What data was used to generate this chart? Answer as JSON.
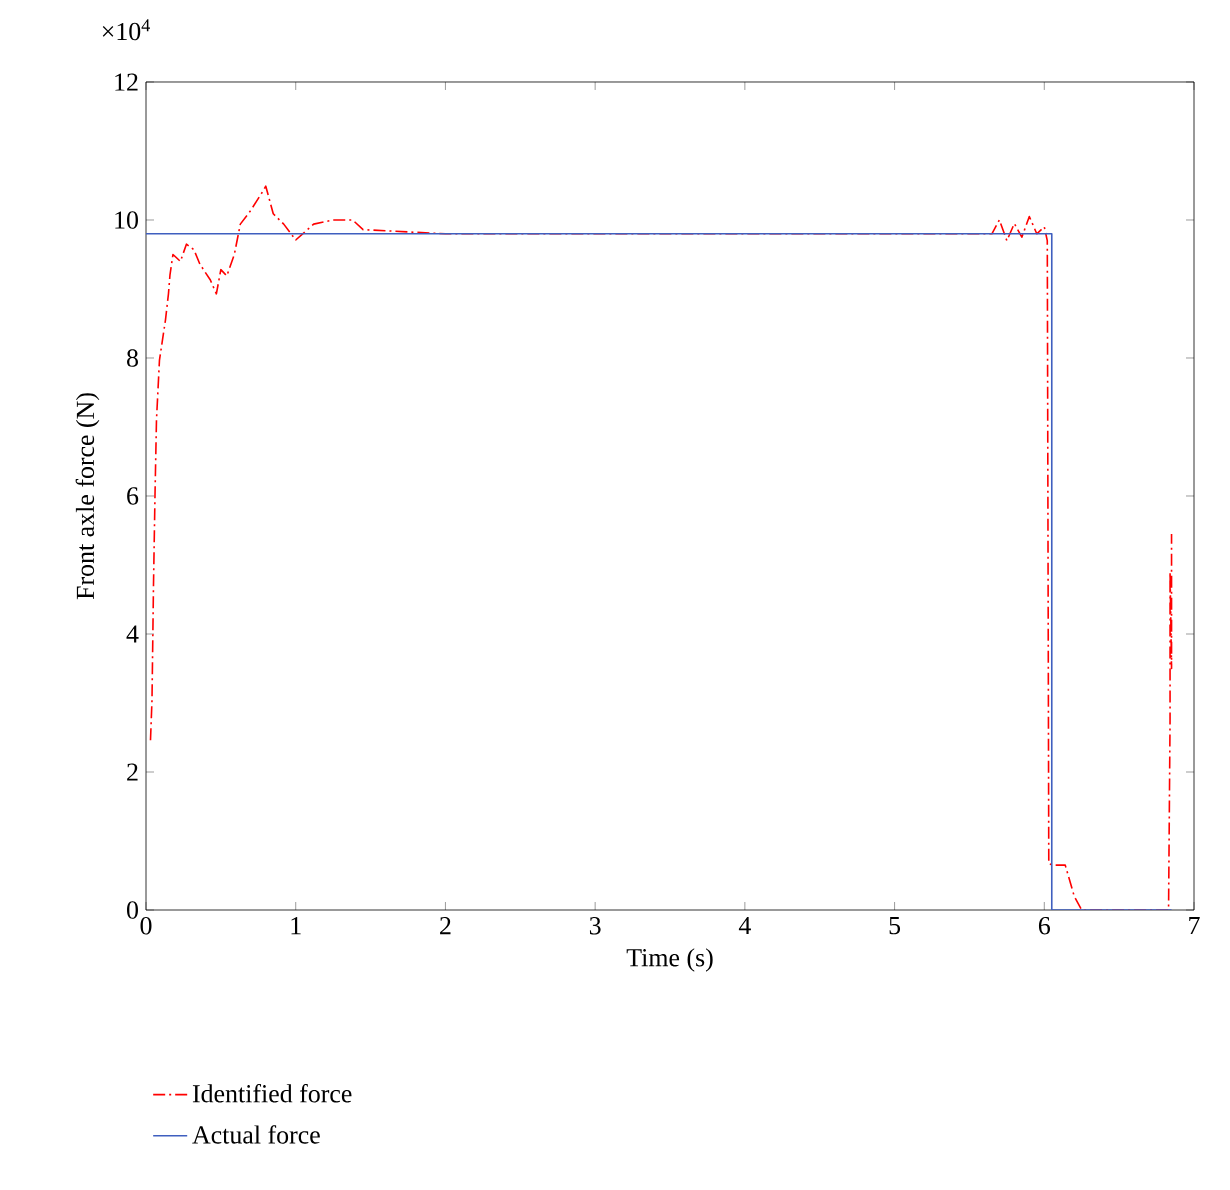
{
  "chart_data": {
    "type": "line",
    "xlabel": "Time (s)",
    "ylabel": "Front axle force (N)",
    "annotations": [
      "×10$^{4}$"
    ],
    "xlim": [
      0,
      7
    ],
    "xticks": [
      0,
      1,
      2,
      3,
      4,
      5,
      6,
      7
    ],
    "ylim": [
      0,
      12
    ],
    "yticks": [
      0,
      2,
      4,
      6,
      8,
      10,
      12
    ],
    "legend": "bottom",
    "grid": false,
    "series": [
      {
        "name": "Identified force",
        "color": "#ff0000",
        "line_style": "dashdot",
        "x": [
          0.03,
          0.04,
          0.05,
          0.06,
          0.07,
          0.09,
          0.13,
          0.15,
          0.16,
          0.18,
          0.23,
          0.27,
          0.32,
          0.36,
          0.43,
          0.47,
          0.5,
          0.54,
          0.59,
          0.63,
          0.7,
          0.77,
          0.8,
          0.85,
          0.92,
          1.0,
          1.12,
          1.25,
          1.38,
          1.45,
          2.0,
          3.0,
          4.0,
          5.0,
          5.65,
          5.7,
          5.75,
          5.8,
          5.85,
          5.9,
          5.95,
          6.0,
          6.02,
          6.03,
          6.06,
          6.14,
          6.2,
          6.25,
          6.3,
          6.83,
          6.84,
          6.84,
          6.85,
          6.85
        ],
        "values": [
          2.46,
          3.04,
          4.7,
          6.0,
          7.1,
          7.97,
          8.55,
          8.93,
          9.2,
          9.5,
          9.4,
          9.65,
          9.57,
          9.36,
          9.13,
          8.93,
          9.28,
          9.19,
          9.5,
          9.94,
          10.14,
          10.38,
          10.49,
          10.09,
          9.94,
          9.71,
          9.94,
          10.0,
          10.0,
          9.86,
          9.8,
          null,
          null,
          null,
          9.8,
          10.0,
          9.7,
          9.95,
          9.75,
          10.05,
          9.8,
          9.9,
          9.7,
          0.67,
          0.65,
          0.65,
          0.2,
          0,
          0,
          0,
          2.75,
          4.9,
          3.5,
          5.45
        ]
      },
      {
        "name": "Actual force",
        "color": "#3f5fbf",
        "line_style": "solid",
        "x": [
          0,
          6.05,
          6.05,
          6.85
        ],
        "values": [
          9.8,
          9.8,
          0,
          0
        ]
      }
    ]
  }
}
